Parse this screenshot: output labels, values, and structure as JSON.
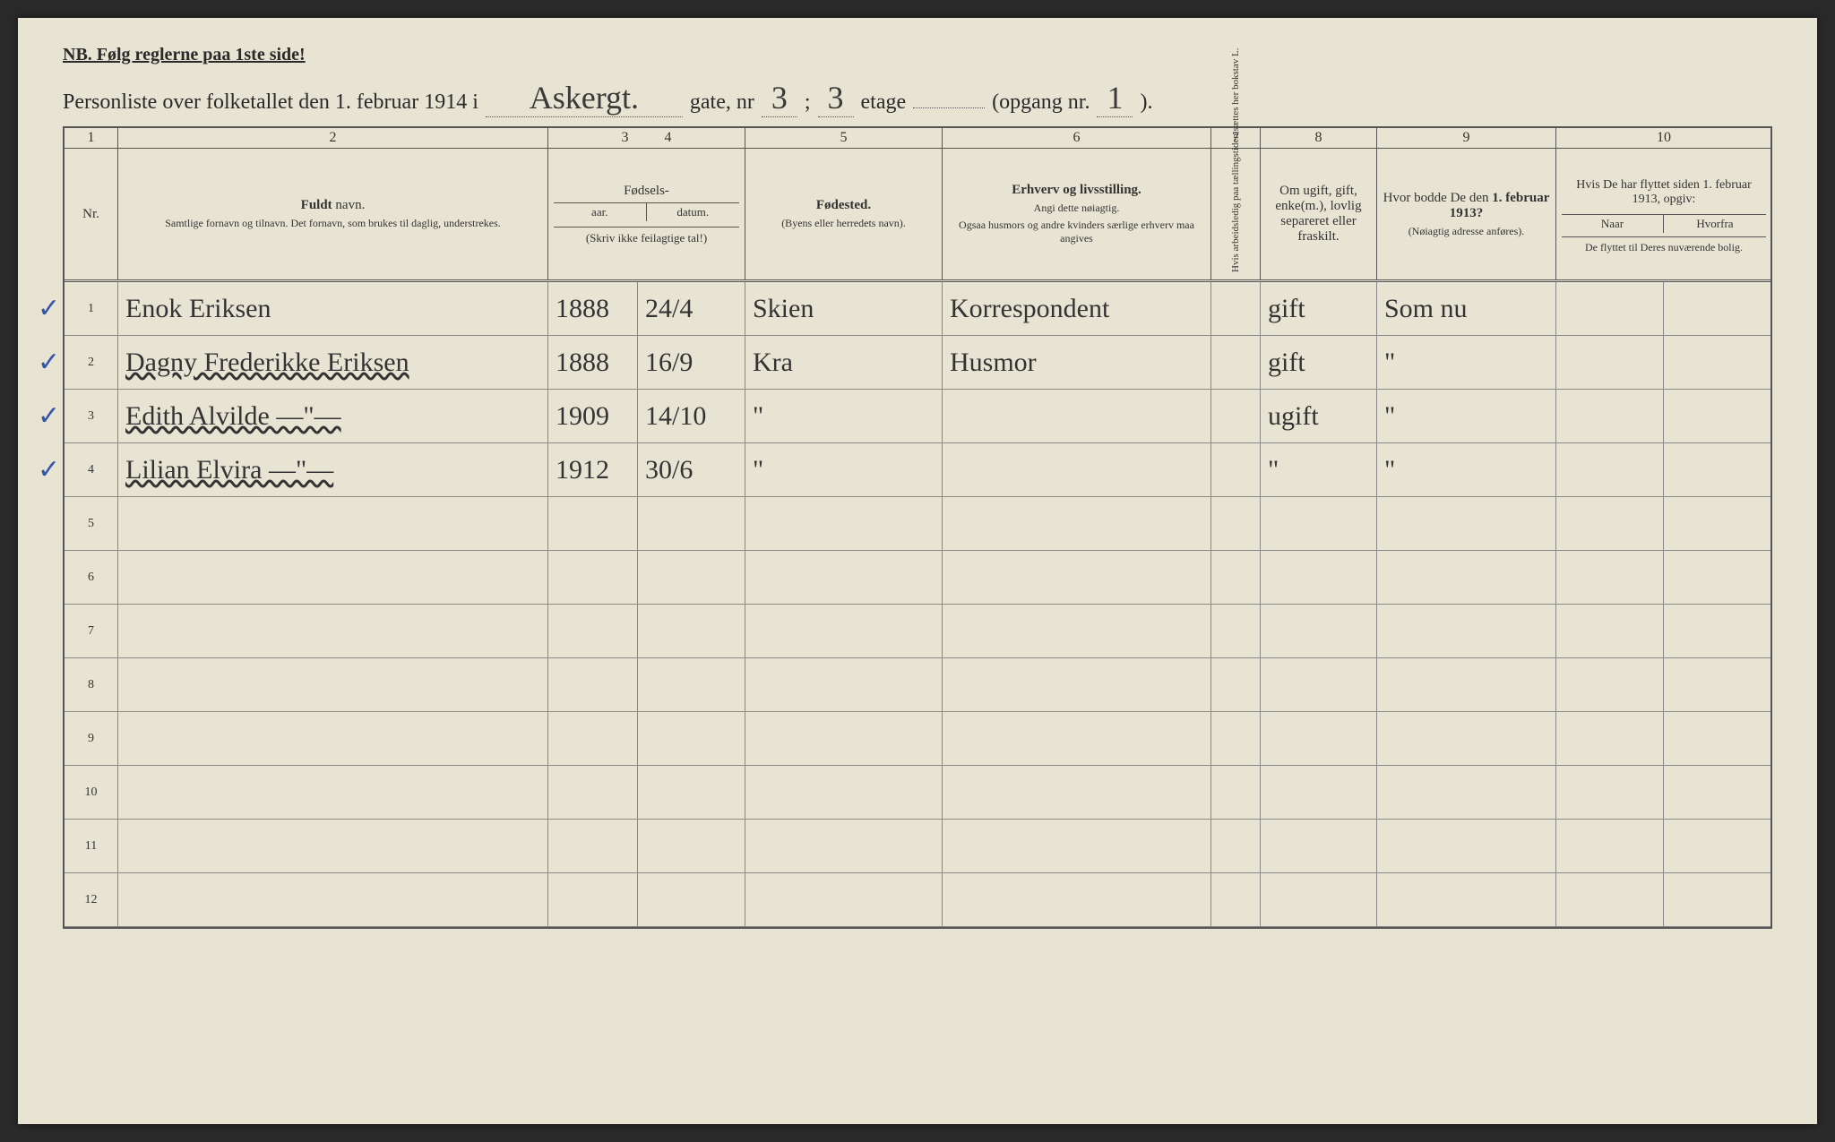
{
  "top_note": "NB.   Følg reglerne paa 1ste side!",
  "header": {
    "prefix": "Personliste over folketallet den 1. februar 1914 i",
    "street": "Askergt.",
    "gate_label": "gate, nr",
    "nr": "3",
    "sep": ";",
    "etage": "3",
    "etage_label": "etage",
    "opgang_label": "(opgang nr.",
    "opgang": "1",
    "opgang_close": ")."
  },
  "col_nums": [
    "1",
    "2",
    "3",
    "4",
    "5",
    "6",
    "7",
    "8",
    "9",
    "10"
  ],
  "headers": {
    "nr": "Nr.",
    "name_title": "Fuldt",
    "name_title2": "navn.",
    "name_sub": "Samtlige fornavn og tilnavn. Det fornavn, som brukes til daglig, understrekes.",
    "birth_header": "Fødsels-",
    "aar": "aar.",
    "datum": "datum.",
    "birth_note": "(Skriv ikke feilagtige tal!)",
    "birthplace": "Fødested.",
    "birthplace_sub": "(Byens eller herredets navn).",
    "occupation": "Erhverv og livsstilling.",
    "occupation_sub": "Angi dette nøiagtig.",
    "occupation_sub2": "Ogsaa husmors og andre kvinders særlige erhverv maa angives",
    "col7": "Hvis arbeidsledig paa tællingstiden sættes her bokstav L.",
    "marital": "Om ugift, gift, enke(m.), lovlig separeret eller fraskilt.",
    "prev_addr": "Hvor bodde De den 1. februar 1913?",
    "prev_addr_sub": "(Nøiagtig adresse anføres).",
    "col10_top": "Hvis De har flyttet siden 1. februar 1913, opgiv:",
    "naar": "Naar",
    "hvorfra": "Hvorfra",
    "col10_bot": "De flyttet til Deres nuværende bolig."
  },
  "rows": [
    {
      "n": "1",
      "check": "✓",
      "name": "Enok Eriksen",
      "year": "1888",
      "date": "24/4",
      "place": "Skien",
      "occ": "Korrespondent",
      "mar": "gift",
      "addr": "Som nu",
      "naar": "",
      "hvorfra": "",
      "name_underline": false
    },
    {
      "n": "2",
      "check": "✓",
      "name": "Dagny Frederikke Eriksen",
      "year": "1888",
      "date": "16/9",
      "place": "Kra",
      "occ": "Husmor",
      "mar": "gift",
      "addr": "\"",
      "naar": "",
      "hvorfra": "",
      "name_underline": true
    },
    {
      "n": "3",
      "check": "✓",
      "name": "Edith Alvilde   —\"—",
      "year": "1909",
      "date": "14/10",
      "place": "\"",
      "occ": "",
      "mar": "ugift",
      "addr": "\"",
      "naar": "",
      "hvorfra": "",
      "name_underline": true
    },
    {
      "n": "4",
      "check": "✓",
      "name": "Lilian Elvira   —\"—",
      "year": "1912",
      "date": "30/6",
      "place": "\"",
      "occ": "",
      "mar": "\"",
      "addr": "\"",
      "naar": "",
      "hvorfra": "",
      "name_underline": true
    },
    {
      "n": "5",
      "check": "",
      "name": "",
      "year": "",
      "date": "",
      "place": "",
      "occ": "",
      "mar": "",
      "addr": "",
      "naar": "",
      "hvorfra": ""
    },
    {
      "n": "6",
      "check": "",
      "name": "",
      "year": "",
      "date": "",
      "place": "",
      "occ": "",
      "mar": "",
      "addr": "",
      "naar": "",
      "hvorfra": ""
    },
    {
      "n": "7",
      "check": "",
      "name": "",
      "year": "",
      "date": "",
      "place": "",
      "occ": "",
      "mar": "",
      "addr": "",
      "naar": "",
      "hvorfra": ""
    },
    {
      "n": "8",
      "check": "",
      "name": "",
      "year": "",
      "date": "",
      "place": "",
      "occ": "",
      "mar": "",
      "addr": "",
      "naar": "",
      "hvorfra": ""
    },
    {
      "n": "9",
      "check": "",
      "name": "",
      "year": "",
      "date": "",
      "place": "",
      "occ": "",
      "mar": "",
      "addr": "",
      "naar": "",
      "hvorfra": ""
    },
    {
      "n": "10",
      "check": "",
      "name": "",
      "year": "",
      "date": "",
      "place": "",
      "occ": "",
      "mar": "",
      "addr": "",
      "naar": "",
      "hvorfra": ""
    },
    {
      "n": "11",
      "check": "",
      "name": "",
      "year": "",
      "date": "",
      "place": "",
      "occ": "",
      "mar": "",
      "addr": "",
      "naar": "",
      "hvorfra": ""
    },
    {
      "n": "12",
      "check": "",
      "name": "",
      "year": "",
      "date": "",
      "place": "",
      "occ": "",
      "mar": "",
      "addr": "",
      "naar": "",
      "hvorfra": ""
    }
  ],
  "colors": {
    "paper": "#e8e4d3",
    "ink": "#2a2a2a",
    "rule": "#555",
    "check": "#3355aa"
  }
}
